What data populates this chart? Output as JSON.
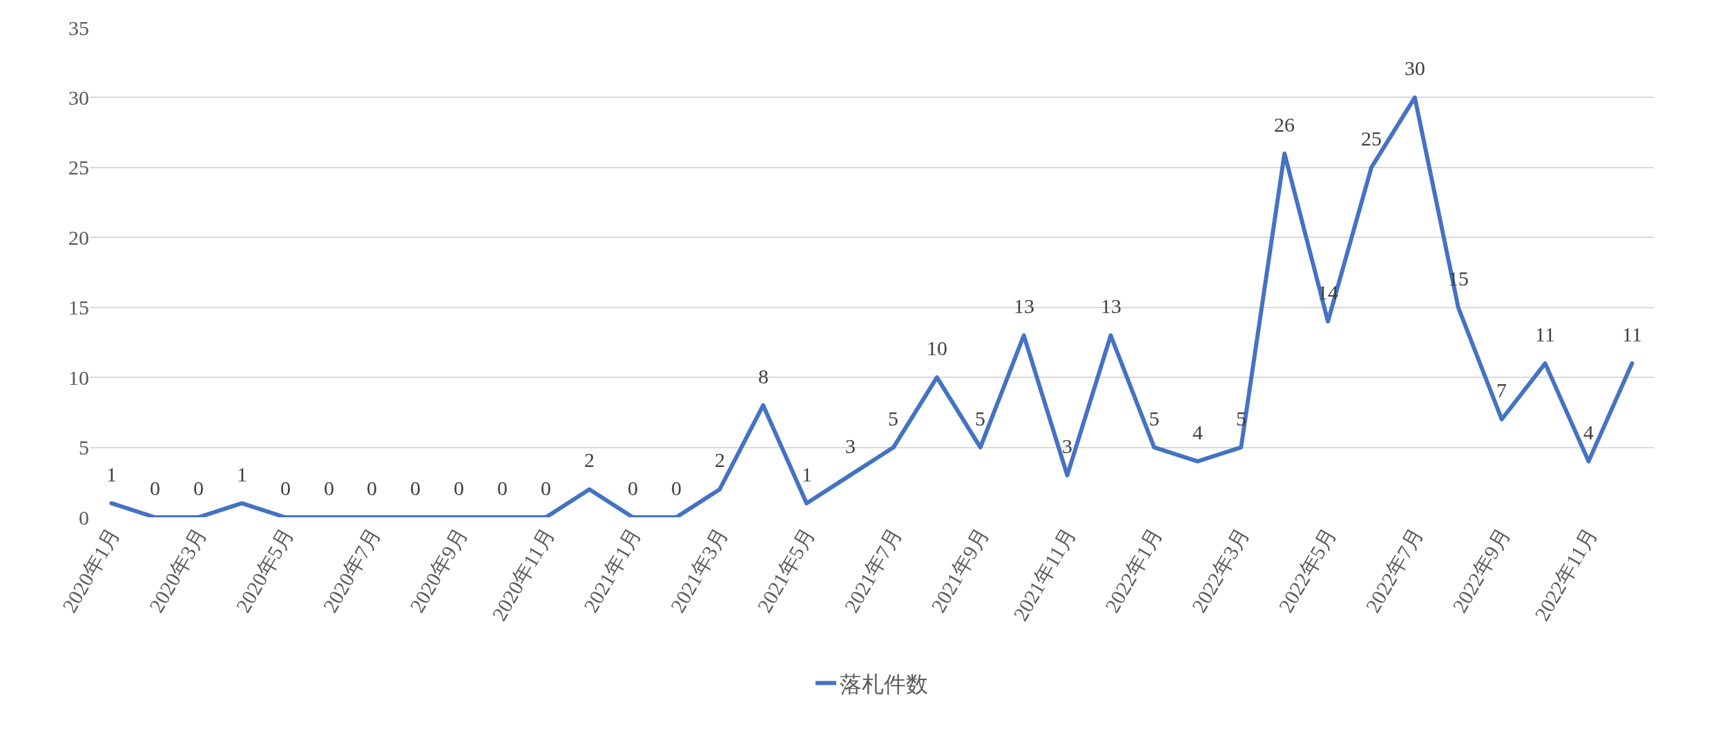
{
  "chart_data": {
    "type": "line",
    "categories": [
      "2020年1月",
      null,
      "2020年3月",
      null,
      "2020年5月",
      null,
      "2020年7月",
      null,
      "2020年9月",
      null,
      "2020年11月",
      null,
      "2021年1月",
      null,
      "2021年3月",
      null,
      "2021年5月",
      null,
      "2021年7月",
      null,
      "2021年9月",
      null,
      "2021年11月",
      null,
      "2022年1月",
      null,
      "2022年3月",
      null,
      "2022年5月",
      null,
      "2022年7月",
      null,
      "2022年9月",
      null,
      "2022年11月",
      null
    ],
    "series": [
      {
        "name": "落札件数",
        "color": "#4472c4",
        "values": [
          1,
          0,
          0,
          1,
          0,
          0,
          0,
          0,
          0,
          0,
          0,
          2,
          0,
          0,
          2,
          8,
          1,
          3,
          5,
          10,
          5,
          13,
          3,
          13,
          5,
          4,
          5,
          26,
          14,
          25,
          30,
          15,
          7,
          11,
          4,
          11
        ]
      }
    ],
    "ylim": [
      0,
      35
    ],
    "yticks": [
      0,
      5,
      10,
      15,
      20,
      25,
      30,
      35
    ],
    "grid": "y",
    "legend": "bottom",
    "data_labels": true,
    "marker": "none",
    "line_style": "solid"
  }
}
